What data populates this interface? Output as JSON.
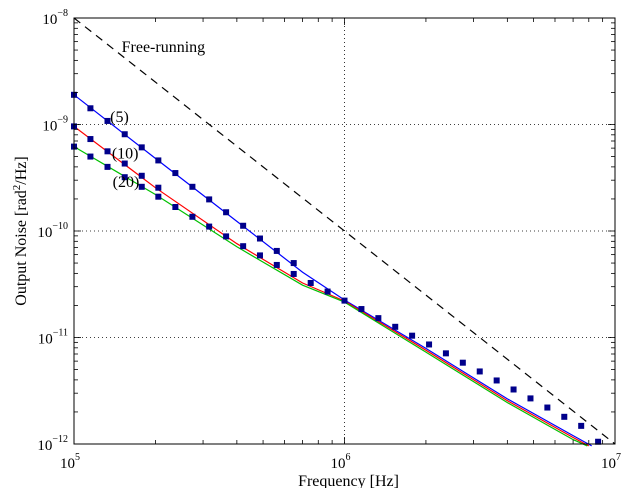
{
  "chart_data": {
    "type": "line",
    "title": "",
    "xlabel": "Frequency    [Hz]",
    "ylabel_main": "Output Noise  [rad",
    "ylabel_sup": "2",
    "ylabel_tail": "/Hz]",
    "x_scale": "log",
    "y_scale": "log",
    "xlim": [
      100000,
      10000000
    ],
    "ylim": [
      1e-12,
      1e-08
    ],
    "grid": true,
    "x_ticks": [
      {
        "value": 100000,
        "base": "10",
        "exp": "5"
      },
      {
        "value": 1000000,
        "base": "10",
        "exp": "6"
      },
      {
        "value": 10000000,
        "base": "10",
        "exp": "7"
      }
    ],
    "y_ticks": [
      {
        "value": 1e-12,
        "base": "10",
        "exp": "−12"
      },
      {
        "value": 1e-11,
        "base": "10",
        "exp": "−11"
      },
      {
        "value": 1e-10,
        "base": "10",
        "exp": "−10"
      },
      {
        "value": 1e-09,
        "base": "10",
        "exp": "−9"
      },
      {
        "value": 1e-08,
        "base": "10",
        "exp": "−8"
      }
    ],
    "series": [
      {
        "label": "Free-running",
        "color": "#000000",
        "dash": "8,6",
        "points": [
          [
            100000,
            1e-08
          ],
          [
            10000000,
            1e-12
          ]
        ]
      },
      {
        "label": "(5)",
        "color": "#0000ff",
        "dash": "",
        "points": [
          [
            100000,
            1.9e-09
          ],
          [
            200000,
            4.8e-10
          ],
          [
            400000,
            1.23e-10
          ],
          [
            700000,
            4.1e-11
          ],
          [
            1000000,
            2.25e-11
          ],
          [
            2000000,
            7.9e-12
          ],
          [
            4000000,
            2.65e-12
          ],
          [
            7000000,
            1.2e-12
          ],
          [
            8200000,
            9.6e-13
          ]
        ]
      },
      {
        "label": "(10)",
        "color": "#ff0000",
        "dash": "",
        "points": [
          [
            100000,
            9.6e-10
          ],
          [
            200000,
            2.55e-10
          ],
          [
            400000,
            7.6e-11
          ],
          [
            700000,
            3.25e-11
          ],
          [
            1000000,
            2.2e-11
          ],
          [
            2000000,
            7.6e-12
          ],
          [
            4000000,
            2.55e-12
          ],
          [
            7000000,
            1.15e-12
          ],
          [
            8000000,
            9.6e-13
          ]
        ]
      },
      {
        "label": "(20)",
        "color": "#00c000",
        "dash": "",
        "points": [
          [
            100000,
            6.2e-10
          ],
          [
            200000,
            2.2e-10
          ],
          [
            400000,
            7.1e-11
          ],
          [
            700000,
            3.1e-11
          ],
          [
            1000000,
            2.15e-11
          ],
          [
            2000000,
            7.3e-12
          ],
          [
            4000000,
            2.45e-12
          ],
          [
            7000000,
            1.1e-12
          ],
          [
            7900000,
            9.6e-13
          ]
        ]
      }
    ],
    "marker_series": [
      {
        "color": "#00008b",
        "points": [
          [
            100000,
            1.9e-09
          ],
          [
            115000,
            1.42e-09
          ],
          [
            133000,
            1.08e-09
          ],
          [
            154000,
            8.1e-10
          ],
          [
            178000,
            6.1e-10
          ],
          [
            205000,
            4.6e-10
          ],
          [
            237000,
            3.5e-10
          ],
          [
            274000,
            2.6e-10
          ],
          [
            316000,
            1.98e-10
          ],
          [
            365000,
            1.5e-10
          ],
          [
            422000,
            1.12e-10
          ],
          [
            487000,
            8.5e-11
          ],
          [
            562000,
            6.5e-11
          ],
          [
            649000,
            5e-11
          ]
        ]
      },
      {
        "color": "#00008b",
        "points": [
          [
            100000,
            9.6e-10
          ],
          [
            115000,
            7.3e-10
          ],
          [
            133000,
            5.6e-10
          ],
          [
            154000,
            4.3e-10
          ],
          [
            178000,
            3.3e-10
          ],
          [
            205000,
            2.55e-10
          ]
        ]
      },
      {
        "color": "#00008b",
        "points": [
          [
            100000,
            6.2e-10
          ],
          [
            115000,
            5e-10
          ],
          [
            133000,
            4e-10
          ],
          [
            154000,
            3.2e-10
          ],
          [
            178000,
            2.6e-10
          ],
          [
            205000,
            2.1e-10
          ],
          [
            237000,
            1.68e-10
          ],
          [
            274000,
            1.36e-10
          ],
          [
            316000,
            1.1e-10
          ],
          [
            365000,
            8.9e-11
          ],
          [
            422000,
            7.2e-11
          ],
          [
            487000,
            5.9e-11
          ],
          [
            562000,
            4.8e-11
          ],
          [
            649000,
            3.95e-11
          ],
          [
            750000,
            3.25e-11
          ],
          [
            866000,
            2.7e-11
          ],
          [
            1000000,
            2.22e-11
          ],
          [
            1155000,
            1.85e-11
          ],
          [
            1334000,
            1.52e-11
          ],
          [
            1540000,
            1.26e-11
          ],
          [
            1778000,
            1.04e-11
          ],
          [
            2054000,
            8.6e-12
          ],
          [
            2371000,
            7.1e-12
          ],
          [
            2738000,
            5.8e-12
          ],
          [
            3162000,
            4.8e-12
          ],
          [
            3652000,
            3.95e-12
          ],
          [
            4217000,
            3.25e-12
          ],
          [
            4870000,
            2.68e-12
          ],
          [
            5623000,
            2.2e-12
          ],
          [
            6494000,
            1.8e-12
          ],
          [
            7499000,
            1.48e-12
          ],
          [
            8660000,
            1.05e-12
          ]
        ]
      }
    ],
    "annotations": [
      {
        "text": "Free-running",
        "x": 150000,
        "y": 4.8e-09
      },
      {
        "text": "(5)",
        "x": 136000,
        "y": 1.05e-09
      },
      {
        "text": "(10)",
        "x": 138000,
        "y": 4.8e-10
      },
      {
        "text": "(20)",
        "x": 139000,
        "y": 2.6e-10
      }
    ]
  }
}
